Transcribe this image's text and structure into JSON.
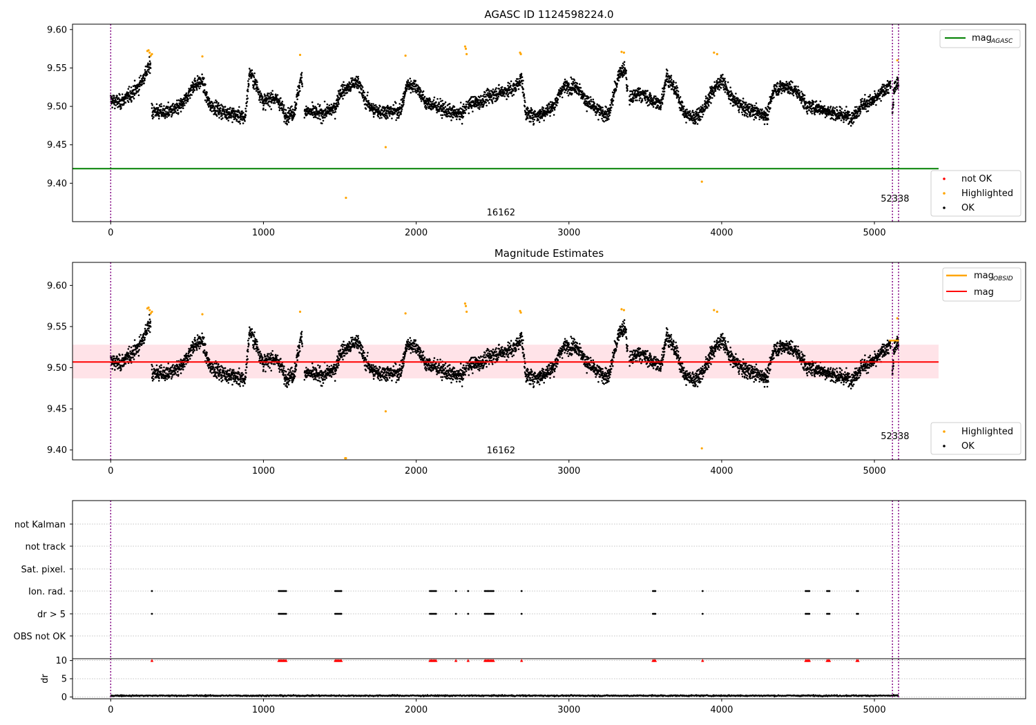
{
  "chart_data": [
    {
      "type": "scatter",
      "title": "AGASC ID 1124598224.0",
      "xlabel": "",
      "ylabel": "",
      "xlim": [
        -250,
        5990
      ],
      "ylim": [
        9.35,
        9.607
      ],
      "x_ticks": [
        0,
        1000,
        2000,
        3000,
        4000,
        5000
      ],
      "y_ticks": [
        9.4,
        9.45,
        9.5,
        9.55,
        9.6
      ],
      "y_tick_labels": [
        "9.40",
        "9.45",
        "9.50",
        "9.55",
        "9.60"
      ],
      "x_tick_labels": [
        "0",
        "1000",
        "2000",
        "3000",
        "4000",
        "5000"
      ],
      "grid": false,
      "vlines": [
        0,
        5118,
        5158
      ],
      "obsid_labels": [
        {
          "text": "16162",
          "x": 2555,
          "y": 9.358
        },
        {
          "text": "52338",
          "x": 5135,
          "y": 9.376
        }
      ],
      "hline": {
        "name": "mag_AGASC",
        "y": 9.419,
        "x_end": 5420,
        "color": "#008000"
      },
      "legend_upper": {
        "position": "top-right",
        "entries": [
          {
            "label": "mag",
            "sub": "AGASC",
            "color": "#008000"
          }
        ]
      },
      "legend_lower": {
        "position": "bottom-right",
        "entries": [
          {
            "label": "not OK",
            "color": "#ff0000"
          },
          {
            "label": "Highlighted",
            "color": "#ffa500"
          },
          {
            "label": "OK",
            "color": "#000000"
          }
        ]
      },
      "highlighted_points": [
        [
          240,
          9.572
        ],
        [
          248,
          9.573
        ],
        [
          255,
          9.57
        ],
        [
          262,
          9.566
        ],
        [
          270,
          9.568
        ],
        [
          600,
          9.565
        ],
        [
          1240,
          9.567
        ],
        [
          1540,
          9.381
        ],
        [
          1800,
          9.447
        ],
        [
          1930,
          9.566
        ],
        [
          2320,
          9.578
        ],
        [
          2325,
          9.575
        ],
        [
          2330,
          9.568
        ],
        [
          2680,
          9.57
        ],
        [
          2685,
          9.568
        ],
        [
          3345,
          9.571
        ],
        [
          3360,
          9.57
        ],
        [
          3870,
          9.402
        ],
        [
          3950,
          9.57
        ],
        [
          3970,
          9.568
        ],
        [
          5150,
          9.56
        ]
      ],
      "colors": {
        "ok": "#000000",
        "highlighted": "#ffa500",
        "not_ok": "#ff0000"
      }
    },
    {
      "type": "scatter",
      "title": "Magnitude Estimates",
      "xlabel": "",
      "ylabel": "",
      "xlim": [
        -250,
        5990
      ],
      "ylim": [
        9.388,
        9.628
      ],
      "x_ticks": [
        0,
        1000,
        2000,
        3000,
        4000,
        5000
      ],
      "y_ticks": [
        9.4,
        9.45,
        9.5,
        9.55,
        9.6
      ],
      "y_tick_labels": [
        "9.40",
        "9.45",
        "9.50",
        "9.55",
        "9.60"
      ],
      "x_tick_labels": [
        "0",
        "1000",
        "2000",
        "3000",
        "4000",
        "5000"
      ],
      "grid": false,
      "vlines": [
        0,
        5118,
        5158
      ],
      "obsid_labels": [
        {
          "text": "16162",
          "x": 2555,
          "y": 9.396
        },
        {
          "text": "52338",
          "x": 5135,
          "y": 9.413
        }
      ],
      "mag_line": {
        "name": "mag",
        "y": 9.507,
        "x_end": 5420,
        "band": [
          9.487,
          9.528
        ],
        "color": "#ff0000"
      },
      "mag_obsid": {
        "name": "mag_OBSID",
        "y": 9.533,
        "x": [
          5095,
          5160
        ],
        "color": "#ffa500"
      },
      "legend_upper": {
        "position": "top-right",
        "entries": [
          {
            "label": "mag",
            "sub": "OBSID",
            "color": "#ffa500"
          },
          {
            "label": "mag",
            "sub": "",
            "color": "#ff0000"
          }
        ]
      },
      "legend_lower": {
        "position": "bottom-right",
        "entries": [
          {
            "label": "Highlighted",
            "color": "#ffa500"
          },
          {
            "label": "OK",
            "color": "#000000"
          }
        ]
      },
      "highlighted_points": [
        [
          240,
          9.572
        ],
        [
          248,
          9.573
        ],
        [
          255,
          9.57
        ],
        [
          262,
          9.566
        ],
        [
          270,
          9.568
        ],
        [
          600,
          9.565
        ],
        [
          1240,
          9.568
        ],
        [
          1535,
          9.39
        ],
        [
          1540,
          9.39
        ],
        [
          1800,
          9.447
        ],
        [
          1930,
          9.566
        ],
        [
          2320,
          9.578
        ],
        [
          2325,
          9.575
        ],
        [
          2330,
          9.568
        ],
        [
          2680,
          9.569
        ],
        [
          2685,
          9.567
        ],
        [
          3345,
          9.571
        ],
        [
          3360,
          9.57
        ],
        [
          3870,
          9.402
        ],
        [
          3950,
          9.57
        ],
        [
          3970,
          9.568
        ],
        [
          5150,
          9.56
        ]
      ],
      "colors": {
        "ok": "#000000",
        "highlighted": "#ffa500",
        "band": "#ffb6c1"
      }
    },
    {
      "type": "scatter",
      "title": "",
      "xlabel": "",
      "ylabel": "",
      "xlim": [
        -250,
        5990
      ],
      "flag_labels": [
        "not Kalman",
        "not track",
        "Sat. pixel.",
        "Ion. rad.",
        "dr > 5",
        "OBS not OK"
      ],
      "flag_times": [
        270,
        1100,
        1108,
        1116,
        1124,
        1132,
        1140,
        1148,
        1470,
        1478,
        1486,
        1494,
        1502,
        1510,
        2090,
        2098,
        2106,
        2114,
        2122,
        2130,
        2260,
        2340,
        2450,
        2458,
        2466,
        2474,
        2482,
        2490,
        2498,
        2506,
        2690,
        3550,
        3558,
        3566,
        3875,
        4550,
        4558,
        4566,
        4574,
        4690,
        4698,
        4706,
        4885,
        4893
      ],
      "flag_rows_set": [
        "Ion. rad.",
        "dr > 5"
      ],
      "grid": true,
      "vlines": [
        0,
        5118,
        5158
      ],
      "x_ticks": [
        0,
        1000,
        2000,
        3000,
        4000,
        5000
      ]
    },
    {
      "type": "scatter",
      "title": "",
      "xlabel": "",
      "ylabel": "dr",
      "xlim": [
        -250,
        5990
      ],
      "ylim": [
        -0.5,
        10.5
      ],
      "y_ticks": [
        0,
        5,
        10
      ],
      "y_tick_labels": [
        "0",
        "5",
        "10"
      ],
      "x_ticks": [
        0,
        1000,
        2000,
        3000,
        4000,
        5000
      ],
      "x_tick_labels": [
        "0",
        "1000",
        "2000",
        "3000",
        "4000",
        "5000"
      ],
      "grid": true,
      "vlines": [
        0,
        5118,
        5158
      ],
      "dr_typical": 0.35,
      "clipped_marker_y": 10,
      "colors": {
        "dr": "#000000",
        "clipped": "#ff0000"
      }
    }
  ]
}
